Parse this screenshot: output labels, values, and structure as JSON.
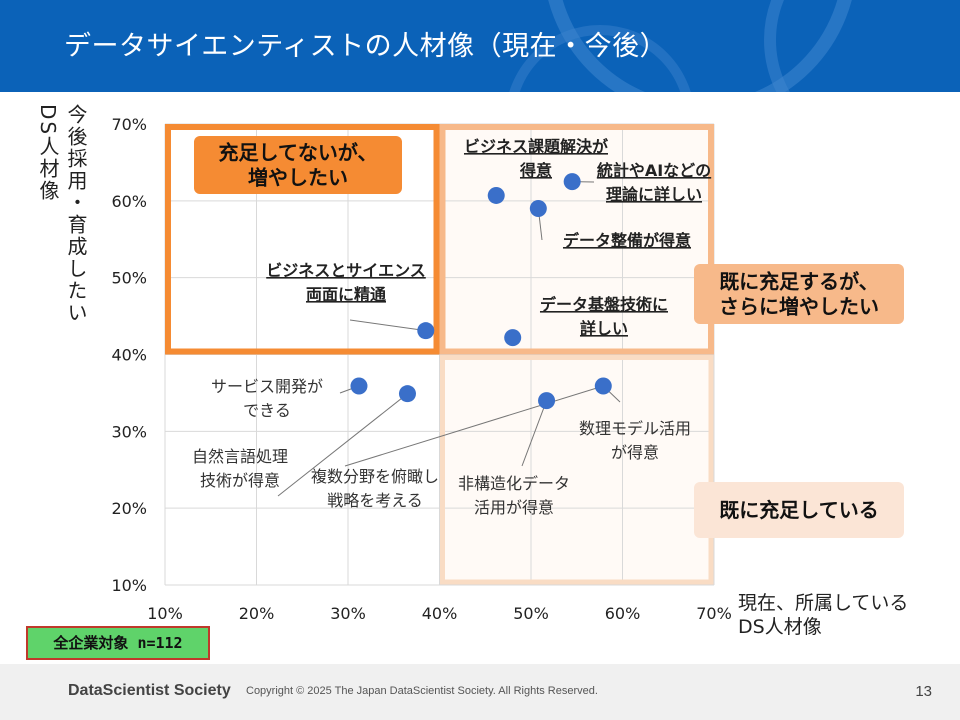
{
  "slide": {
    "title": "データサイエンティストの人材像（現在・今後）",
    "page_number": "13"
  },
  "footer": {
    "logo": "DataScientist Society",
    "copyright": "Copyright © 2025  The Japan DataScientist Society. All Rights Reserved."
  },
  "sample_badge": "全企業対象  n=112",
  "colors": {
    "header": "#0b62b8",
    "point": "#3a6fc9",
    "quadrant_strong": "#f58b33",
    "quadrant_medium": "#f7b98a",
    "quadrant_light": "#f9dcc4",
    "badge_fill": "#5fd36a",
    "badge_border": "#c0392b"
  },
  "chart_data": {
    "type": "scatter",
    "xlabel_lines": [
      "現在、所属している",
      "DS人材像"
    ],
    "ylabel_columns": [
      "今後採用・育成したい",
      "DS人材像"
    ],
    "xlim": [
      10,
      70
    ],
    "ylim": [
      10,
      70
    ],
    "x_ticks": [
      "10%",
      "20%",
      "30%",
      "40%",
      "50%",
      "60%",
      "70%"
    ],
    "y_ticks": [
      "10%",
      "20%",
      "30%",
      "40%",
      "50%",
      "60%",
      "70%"
    ],
    "grid": true,
    "quadrants": [
      {
        "name": "top-left",
        "x_range": [
          10,
          40
        ],
        "y_range": [
          40,
          70
        ],
        "style": "strong",
        "label_lines": [
          "充足してないが、",
          "増やしたい"
        ]
      },
      {
        "name": "top-right",
        "x_range": [
          40,
          70
        ],
        "y_range": [
          40,
          70
        ],
        "style": "medium",
        "label_lines": [
          "既に充足するが、",
          "さらに増やしたい"
        ]
      },
      {
        "name": "bottom-right",
        "x_range": [
          40,
          70
        ],
        "y_range": [
          10,
          40
        ],
        "style": "light",
        "label_lines": [
          "既に充足している"
        ]
      }
    ],
    "points": [
      {
        "label_lines": [
          "ビジネス課題解決が",
          "得意"
        ],
        "x": 46.2,
        "y": 60.7,
        "emphasis": true
      },
      {
        "label_lines": [
          "統計やAIなどの",
          "理論に詳しい"
        ],
        "x": 54.5,
        "y": 62.5,
        "emphasis": true
      },
      {
        "label_lines": [
          "データ整備が得意"
        ],
        "x": 50.8,
        "y": 59.0,
        "emphasis": true
      },
      {
        "label_lines": [
          "ビジネスとサイエンス",
          "両面に精通"
        ],
        "x": 38.5,
        "y": 43.1,
        "emphasis": true
      },
      {
        "label_lines": [
          "データ基盤技術に",
          "詳しい"
        ],
        "x": 48.0,
        "y": 42.2,
        "emphasis": true
      },
      {
        "label_lines": [
          "サービス開発が",
          "できる"
        ],
        "x": 31.2,
        "y": 35.9,
        "emphasis": false
      },
      {
        "label_lines": [
          "自然言語処理",
          "技術が得意"
        ],
        "x": 36.5,
        "y": 34.9,
        "emphasis": false
      },
      {
        "label_lines": [
          "非構造化データ",
          "活用が得意"
        ],
        "x": 51.7,
        "y": 34.0,
        "emphasis": false
      },
      {
        "label_lines": [
          "数理モデル活用",
          "が得意"
        ],
        "x": 57.9,
        "y": 35.9,
        "emphasis": false
      },
      {
        "label_lines": [
          "複数分野を俯瞰し",
          "戦略を考える"
        ],
        "x": 57.9,
        "y": 35.9,
        "emphasis": false
      }
    ]
  }
}
